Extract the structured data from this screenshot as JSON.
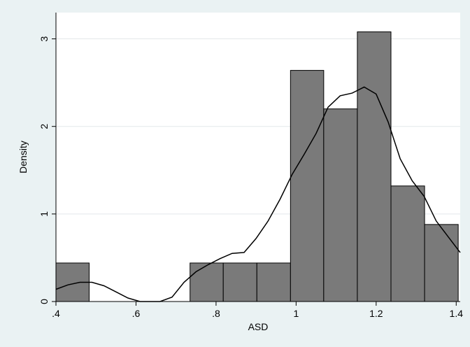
{
  "chart_data": {
    "type": "bar",
    "subtype": "histogram-with-density",
    "xlabel": "ASD",
    "ylabel": "Density",
    "xlim": [
      0.4,
      1.41
    ],
    "ylim": [
      0,
      3.3
    ],
    "x_ticks": [
      0.4,
      0.6,
      0.8,
      1.0,
      1.2,
      1.4
    ],
    "x_tick_labels": [
      ".4",
      ".6",
      ".8",
      "1",
      "1.2",
      "1.4"
    ],
    "y_ticks": [
      0,
      1,
      2,
      3
    ],
    "y_tick_labels": [
      "0",
      "1",
      "2",
      "3"
    ],
    "bins": [
      {
        "x0": 0.4,
        "x1": 0.483,
        "density": 0.44
      },
      {
        "x0": 0.735,
        "x1": 0.818,
        "density": 0.44
      },
      {
        "x0": 0.818,
        "x1": 0.902,
        "density": 0.44
      },
      {
        "x0": 0.902,
        "x1": 0.986,
        "density": 0.44
      },
      {
        "x0": 0.986,
        "x1": 1.069,
        "density": 2.64
      },
      {
        "x0": 1.069,
        "x1": 1.153,
        "density": 2.2
      },
      {
        "x0": 1.153,
        "x1": 1.237,
        "density": 3.08
      },
      {
        "x0": 1.237,
        "x1": 1.321,
        "density": 1.32
      },
      {
        "x0": 1.321,
        "x1": 1.405,
        "density": 0.88
      }
    ],
    "density_curve": {
      "x": [
        0.4,
        0.43,
        0.46,
        0.49,
        0.52,
        0.55,
        0.58,
        0.61,
        0.66,
        0.69,
        0.72,
        0.75,
        0.78,
        0.81,
        0.84,
        0.87,
        0.9,
        0.93,
        0.96,
        0.99,
        1.02,
        1.05,
        1.08,
        1.11,
        1.14,
        1.17,
        1.2,
        1.23,
        1.26,
        1.29,
        1.32,
        1.35,
        1.38,
        1.41
      ],
      "y": [
        0.14,
        0.19,
        0.22,
        0.22,
        0.18,
        0.11,
        0.04,
        0.0,
        0.0,
        0.05,
        0.22,
        0.34,
        0.42,
        0.49,
        0.55,
        0.56,
        0.72,
        0.92,
        1.17,
        1.45,
        1.68,
        1.92,
        2.22,
        2.35,
        2.38,
        2.45,
        2.37,
        2.05,
        1.63,
        1.38,
        1.2,
        0.92,
        0.74,
        0.56
      ]
    },
    "grid": true,
    "bar_color": "#7a7a7a",
    "bar_edge_color": "#000000",
    "background_color": "#eaf2f3",
    "plot_background_color": "#ffffff",
    "grid_color": "#e3e8ea"
  }
}
